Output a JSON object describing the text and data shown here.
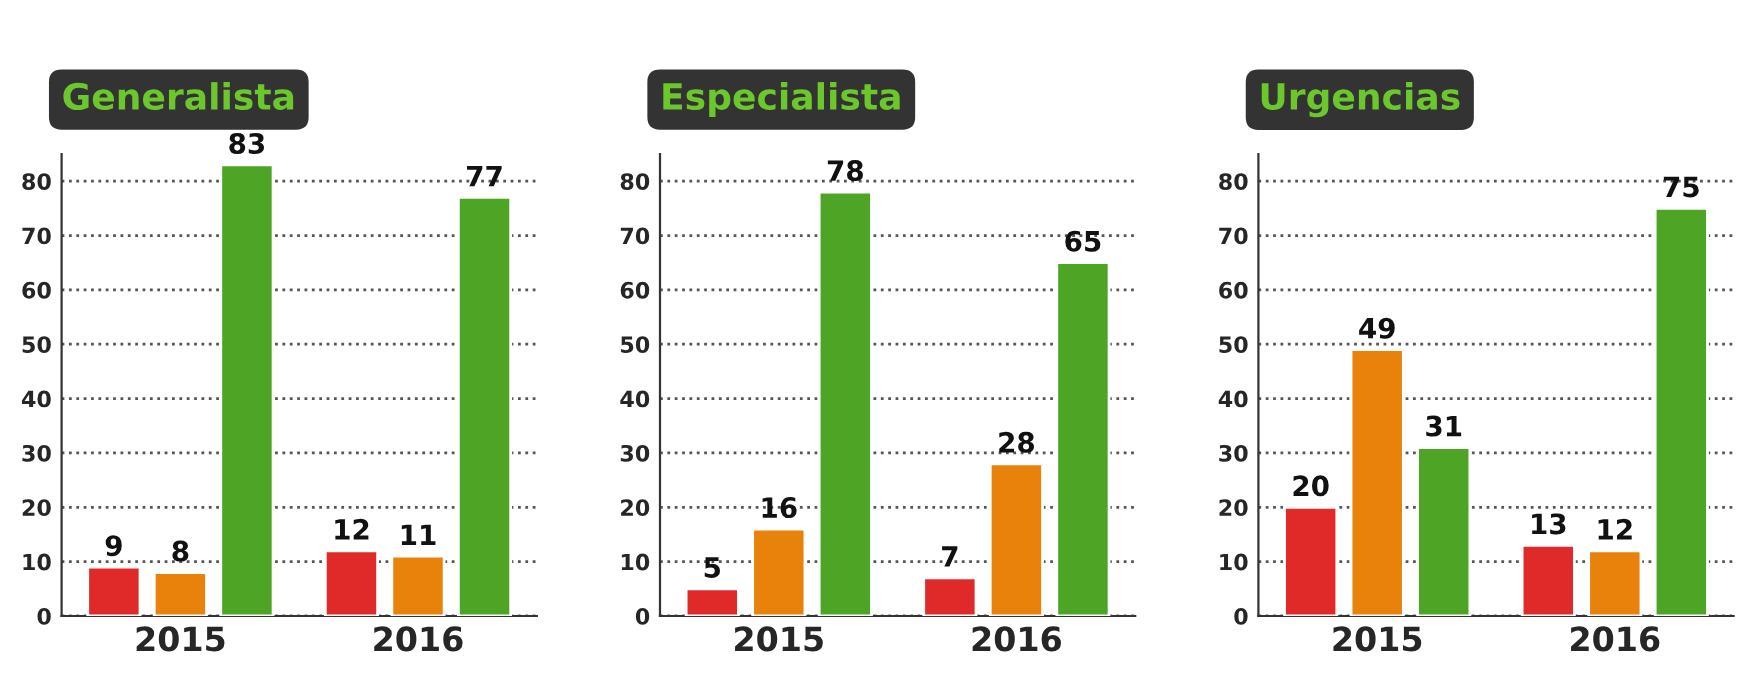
{
  "chart_data": [
    {
      "type": "bar",
      "title": "Generalista",
      "categories": [
        "2015",
        "2016"
      ],
      "ylim": [
        0,
        85
      ],
      "yticks": [
        0,
        10,
        20,
        30,
        40,
        50,
        60,
        70,
        80
      ],
      "grid": "y",
      "data_labels": true,
      "series": [
        {
          "color": "#e02a2a",
          "values": [
            9,
            12
          ]
        },
        {
          "color": "#e8820a",
          "values": [
            8,
            11
          ]
        },
        {
          "color": "#4ea424",
          "values": [
            83,
            77
          ]
        }
      ]
    },
    {
      "type": "bar",
      "title": "Especialista",
      "categories": [
        "2015",
        "2016"
      ],
      "ylim": [
        0,
        85
      ],
      "yticks": [
        0,
        10,
        20,
        30,
        40,
        50,
        60,
        70,
        80
      ],
      "grid": "y",
      "data_labels": true,
      "series": [
        {
          "color": "#e02a2a",
          "values": [
            5,
            7
          ]
        },
        {
          "color": "#e8820a",
          "values": [
            16,
            28
          ]
        },
        {
          "color": "#4ea424",
          "values": [
            78,
            65
          ]
        }
      ]
    },
    {
      "type": "bar",
      "title": "Urgencias",
      "categories": [
        "2015",
        "2016"
      ],
      "ylim": [
        0,
        85
      ],
      "yticks": [
        0,
        10,
        20,
        30,
        40,
        50,
        60,
        70,
        80
      ],
      "grid": "y",
      "data_labels": true,
      "series": [
        {
          "color": "#e02a2a",
          "values": [
            20,
            13
          ]
        },
        {
          "color": "#e8820a",
          "values": [
            49,
            12
          ]
        },
        {
          "color": "#4ea424",
          "values": [
            31,
            75
          ]
        }
      ]
    }
  ]
}
